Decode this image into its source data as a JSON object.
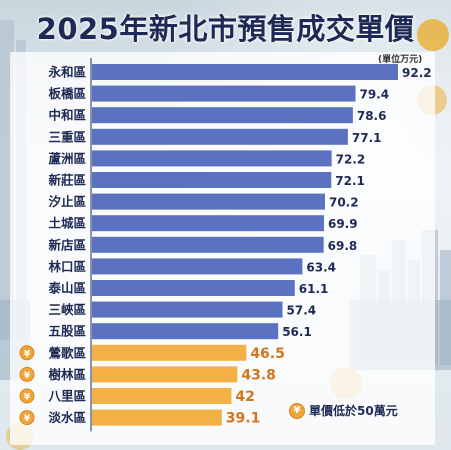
{
  "title": "2025年新北市預售成交單價",
  "unit": "(單位万元)",
  "legend": {
    "icon": "¥",
    "label": "單價低於50萬元"
  },
  "colors": {
    "blue": "#5b72c0",
    "orange": "#f3b045",
    "highlight_text": "#d4741c",
    "normal_text": "#1e2a55"
  },
  "chart_data": {
    "type": "bar",
    "orientation": "horizontal",
    "categories": [
      "永和區",
      "板橋區",
      "中和區",
      "三重區",
      "蘆洲區",
      "新莊區",
      "汐止區",
      "土城區",
      "新店區",
      "林口區",
      "泰山區",
      "三峽區",
      "五股區",
      "鶯歌區",
      "樹林區",
      "八里區",
      "淡水區"
    ],
    "values": [
      92.2,
      79.4,
      78.6,
      77.1,
      72.2,
      72.1,
      70.2,
      69.9,
      69.8,
      63.4,
      61.1,
      57.4,
      56.1,
      46.5,
      43.8,
      42,
      39.1
    ],
    "labels": [
      "92.2",
      "79.4",
      "78.6",
      "77.1",
      "72.2",
      "72.1",
      "70.2",
      "69.9",
      "69.8",
      "63.4",
      "61.1",
      "57.4",
      "56.1",
      "46.5",
      "43.8",
      "42",
      "39.1"
    ],
    "highlighted": [
      false,
      false,
      false,
      false,
      false,
      false,
      false,
      false,
      false,
      false,
      false,
      false,
      false,
      true,
      true,
      true,
      true
    ],
    "xlim": [
      0,
      92.2
    ],
    "grid": false
  }
}
